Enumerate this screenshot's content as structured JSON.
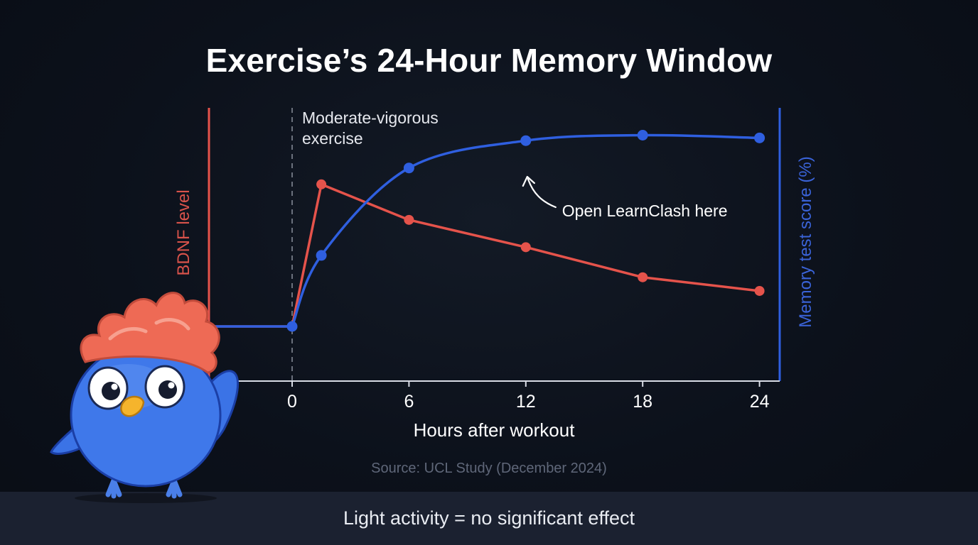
{
  "title": "Exercise’s 24-Hour Memory Window",
  "source": "Source: UCL Study (December 2024)",
  "footer": "Light activity = no significant effect",
  "colors": {
    "bdnf": "#e5534b",
    "memory": "#2f5fe0",
    "memory_label": "#3a63d8",
    "bdnf_label": "#d9534b",
    "background": "#0c111b",
    "footer_bar": "#1b2130"
  },
  "mascot": {
    "name": "bird-mascot-icon"
  },
  "chart_data": {
    "type": "line",
    "xlabel": "Hours after workout",
    "ylabel_left": "BDNF level",
    "ylabel_right": "Memory test score (%)",
    "xticks": [
      0,
      6,
      12,
      18,
      24
    ],
    "xlim": [
      -4.3,
      25
    ],
    "exercise_marker": {
      "x": 0,
      "label": [
        "Moderate-vigorous",
        "exercise"
      ]
    },
    "annotation": {
      "text": "Open LearnClash here",
      "x": 12
    },
    "series": [
      {
        "id": "bdnf",
        "axis": "left",
        "baseline_start": -4.3,
        "points": [
          [
            0,
            20
          ],
          [
            1.5,
            72
          ],
          [
            6,
            59
          ],
          [
            12,
            49
          ],
          [
            18,
            38
          ],
          [
            24,
            33
          ]
        ]
      },
      {
        "id": "memory",
        "axis": "right",
        "baseline_start": -4.3,
        "points": [
          [
            0,
            20
          ],
          [
            1.5,
            46
          ],
          [
            6,
            78
          ],
          [
            12,
            88
          ],
          [
            18,
            90
          ],
          [
            24,
            89
          ]
        ]
      }
    ]
  }
}
